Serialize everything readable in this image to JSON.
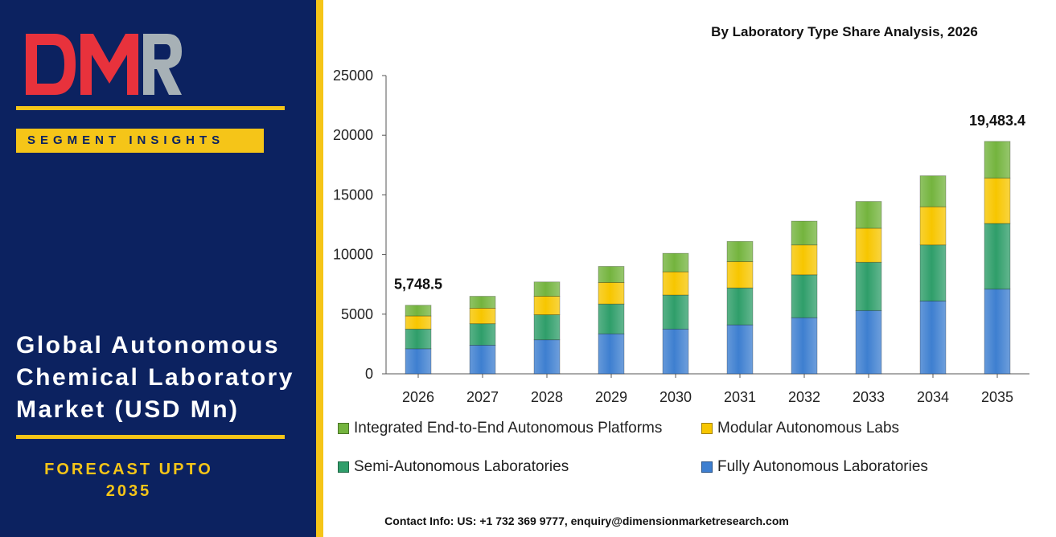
{
  "brand": {
    "logo_text": "DMR"
  },
  "left_panel": {
    "segment_label": "SEGMENT INSIGHTS",
    "market_title": "Global Autonomous Chemical Laboratory Market (USD Mn)",
    "forecast_line1": "FORECAST UPTO",
    "forecast_line2": "2035"
  },
  "colors": {
    "panel_bg": "#0c2260",
    "accent_gold": "#f5c518",
    "logo_red": "#e8323c",
    "logo_grey": "#a7b1b6"
  },
  "chart_data": {
    "type": "bar",
    "stacked": true,
    "title": "By Laboratory Type Share Analysis, 2026",
    "xlabel": "",
    "ylabel": "",
    "ylim": [
      0,
      25000
    ],
    "yticks": [
      0,
      5000,
      10000,
      15000,
      20000,
      25000
    ],
    "grid": false,
    "legend_position": "bottom",
    "categories": [
      "2026",
      "2027",
      "2028",
      "2029",
      "2030",
      "2031",
      "2032",
      "2033",
      "2034",
      "2035"
    ],
    "series": [
      {
        "name": "Fully Autonomous Laboratories",
        "color": "#3e7fd0",
        "values": [
          2100,
          2400,
          2850,
          3350,
          3750,
          4100,
          4700,
          5300,
          6100,
          7100
        ]
      },
      {
        "name": "Semi-Autonomous Laboratories",
        "color": "#2f9e6a",
        "values": [
          1650,
          1800,
          2100,
          2500,
          2850,
          3100,
          3600,
          4050,
          4700,
          5500
        ]
      },
      {
        "name": "Modular Autonomous Labs",
        "color": "#f7c600",
        "values": [
          1100,
          1300,
          1550,
          1800,
          1950,
          2200,
          2500,
          2850,
          3200,
          3800
        ]
      },
      {
        "name": "Integrated End-to-End Autonomous Platforms",
        "color": "#74b43e",
        "values": [
          898.5,
          1000,
          1200,
          1350,
          1550,
          1700,
          2000,
          2250,
          2600,
          3083.4
        ]
      }
    ],
    "data_labels": [
      {
        "category": "2026",
        "text": "5,748.5"
      },
      {
        "category": "2035",
        "text": "19,483.4"
      }
    ]
  },
  "legend_order": [
    "Integrated End-to-End Autonomous Platforms",
    "Modular Autonomous Labs",
    "Semi-Autonomous Laboratories",
    "Fully Autonomous Laboratories"
  ],
  "footer": {
    "contact": "Contact Info: US: +1 732 369 9777, enquiry@dimensionmarketresearch.com"
  }
}
